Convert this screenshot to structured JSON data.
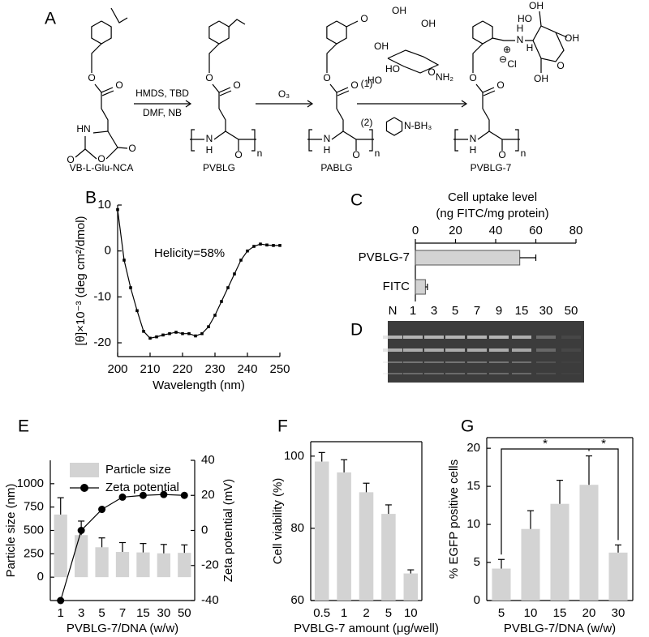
{
  "scheme": {
    "label": "A",
    "compounds": [
      {
        "name": "VB-L-Glu-NCA",
        "atoms": [
          "O",
          "O",
          "HN",
          "O",
          "O",
          "O"
        ]
      },
      {
        "name": "PVBLG",
        "atoms": [
          "O",
          "O",
          "N",
          "H",
          "O",
          "n"
        ]
      },
      {
        "name": "PABLG",
        "atoms": [
          "O",
          "O",
          "N",
          "H",
          "O",
          "n",
          "O"
        ]
      },
      {
        "name": "PVBLG-7",
        "atoms": [
          "O",
          "O",
          "N",
          "H",
          "O",
          "n",
          "N",
          "H",
          "H",
          "⊕",
          "Cl",
          "⊖",
          "OH",
          "HO",
          "OH",
          "O",
          "OH"
        ]
      }
    ],
    "steps": [
      {
        "reagents": [
          "HMDS, TBD",
          "DMF, NB"
        ]
      },
      {
        "reagents": [
          "O₃"
        ]
      },
      {
        "reagents": [
          "(1)",
          "(2)"
        ],
        "glucosamine": [
          "OH",
          "OH",
          "HO",
          "HO",
          "O",
          "OH",
          "NH₂"
        ],
        "reductant": "N-BH₃"
      }
    ]
  },
  "gel": {
    "label": "D",
    "lanes": [
      "N",
      "1",
      "3",
      "5",
      "7",
      "9",
      "15",
      "30",
      "50"
    ]
  },
  "chart_data": [
    {
      "type": "line",
      "label": "B",
      "color": "#000000",
      "x": [
        200,
        202,
        204,
        206,
        208,
        210,
        212,
        214,
        216,
        218,
        220,
        222,
        224,
        226,
        228,
        230,
        232,
        234,
        236,
        238,
        240,
        242,
        244,
        246,
        248,
        250
      ],
      "values": [
        9,
        -2,
        -8,
        -13,
        -17.5,
        -19,
        -18.7,
        -18.3,
        -18,
        -17.7,
        -18,
        -18,
        -18.5,
        -18,
        -16.5,
        -14,
        -11,
        -8,
        -5,
        -2,
        0,
        1,
        1.5,
        1.3,
        1.2,
        1.2
      ],
      "xlim": [
        200,
        250
      ],
      "xticks": [
        200,
        210,
        220,
        230,
        240,
        250
      ],
      "ylim": [
        -23,
        10
      ],
      "yticks": [
        -20,
        -10,
        0,
        10
      ],
      "xlabel": "Wavelength (nm)",
      "ylabel": "[θ]×10⁻³ (deg cm²/dmol)",
      "annotation": "Helicity=58%"
    },
    {
      "type": "hbar",
      "label": "C",
      "color": "#d3d3d3",
      "categories": [
        "PVBLG-7",
        "FITC"
      ],
      "values": [
        52,
        5
      ],
      "errors": [
        8,
        1
      ],
      "xlim": [
        0,
        80
      ],
      "xticks": [
        0,
        20,
        40,
        60,
        80
      ],
      "xlabel": [
        "Cell uptake level",
        "(ng FITC/mg protein)"
      ]
    },
    {
      "type": "combo",
      "label": "E",
      "categories": [
        "1",
        "3",
        "5",
        "7",
        "15",
        "30",
        "50"
      ],
      "series": [
        {
          "name": "Particle size",
          "color": "#d3d3d3",
          "values": [
            670,
            450,
            320,
            270,
            265,
            255,
            260
          ],
          "errors": [
            180,
            150,
            100,
            100,
            95,
            95,
            85
          ]
        },
        {
          "name": "Zeta potential",
          "color": "#000000",
          "values": [
            -40,
            0,
            12,
            19,
            20,
            20.5,
            20
          ],
          "axis": "y2"
        }
      ],
      "ylim": [
        -250,
        1250
      ],
      "yticks": [
        0,
        250,
        500,
        750,
        1000
      ],
      "y2lim": [
        -40,
        40
      ],
      "y2ticks": [
        -40,
        -20,
        0,
        20,
        40
      ],
      "xlabel": "PVBLG-7/DNA (w/w)",
      "ylabel": "Particle size (nm)",
      "y2label": "Zeta potential (mV)",
      "legend": "upper left"
    },
    {
      "type": "bar",
      "label": "F",
      "color": "#d3d3d3",
      "categories": [
        "0.5",
        "1",
        "2",
        "5",
        "10"
      ],
      "values": [
        98.5,
        95.5,
        90,
        84,
        67.5
      ],
      "errors": [
        2.5,
        3.5,
        2.5,
        2.5,
        1
      ],
      "ylim": [
        60,
        104
      ],
      "yticks": [
        60,
        80,
        100
      ],
      "xlabel": "PVBLG-7 amount (μg/well)",
      "ylabel": "Cell viability (%)"
    },
    {
      "type": "bar",
      "label": "G",
      "color": "#d3d3d3",
      "categories": [
        "5",
        "10",
        "15",
        "20",
        "30"
      ],
      "values": [
        4.2,
        9.4,
        12.7,
        15.2,
        6.3
      ],
      "errors": [
        1.2,
        2.4,
        3.1,
        3.8,
        1
      ],
      "ylim": [
        0,
        21.4
      ],
      "yticks": [
        0,
        5,
        10,
        15,
        20
      ],
      "xlabel": "PVBLG-7/DNA (w/w)",
      "ylabel": "% EGFP positive cells",
      "annotations": [
        "*",
        "*"
      ]
    }
  ]
}
